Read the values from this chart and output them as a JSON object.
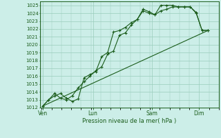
{
  "background_color": "#cceee8",
  "grid_color": "#99ccbb",
  "line_color": "#1a5c1a",
  "xlabel": "Pression niveau de la mer( hPa )",
  "ylim": [
    1012,
    1025.5
  ],
  "yticks": [
    1012,
    1013,
    1014,
    1015,
    1016,
    1017,
    1018,
    1019,
    1020,
    1021,
    1022,
    1023,
    1024,
    1025
  ],
  "xtick_labels": [
    "Ven",
    "Lun",
    "Sam",
    "Dim"
  ],
  "xtick_positions": [
    0.05,
    2.6,
    5.6,
    8.0
  ],
  "xlim": [
    -0.1,
    9.0
  ],
  "series1_x": [
    0.05,
    0.35,
    0.65,
    0.95,
    1.25,
    1.55,
    1.85,
    2.15,
    2.45,
    2.75,
    3.05,
    3.35,
    3.65,
    3.95,
    4.25,
    4.55,
    4.85,
    5.15,
    5.45,
    5.75,
    6.05,
    6.35,
    6.65,
    6.95,
    7.25,
    7.55,
    7.85,
    8.15,
    8.45
  ],
  "series1_y": [
    1012.2,
    1013.0,
    1013.5,
    1013.8,
    1013.2,
    1012.8,
    1013.1,
    1015.8,
    1016.2,
    1016.6,
    1018.5,
    1019.0,
    1021.6,
    1021.8,
    1022.2,
    1022.8,
    1023.2,
    1024.3,
    1024.0,
    1023.8,
    1024.3,
    1024.5,
    1024.8,
    1024.8,
    1024.8,
    1024.8,
    1024.1,
    1021.8,
    1021.8
  ],
  "series2_x": [
    0.05,
    0.35,
    0.65,
    0.95,
    1.25,
    1.55,
    1.85,
    2.15,
    2.45,
    2.75,
    3.05,
    3.35,
    3.65,
    3.95,
    4.25,
    4.55,
    4.85,
    5.15,
    5.45,
    5.75,
    6.05,
    6.35,
    6.65,
    6.95,
    7.25,
    7.55,
    7.85,
    8.15,
    8.45
  ],
  "series2_y": [
    1012.2,
    1013.0,
    1013.8,
    1013.2,
    1013.0,
    1013.5,
    1014.5,
    1015.3,
    1016.0,
    1016.7,
    1017.2,
    1018.8,
    1019.2,
    1021.2,
    1021.5,
    1022.5,
    1023.2,
    1024.5,
    1024.2,
    1023.8,
    1025.0,
    1025.0,
    1025.0,
    1024.8,
    1024.8,
    1024.8,
    1024.0,
    1021.8,
    1021.8
  ],
  "series3_x": [
    0.05,
    8.45
  ],
  "series3_y": [
    1012.2,
    1021.8
  ]
}
